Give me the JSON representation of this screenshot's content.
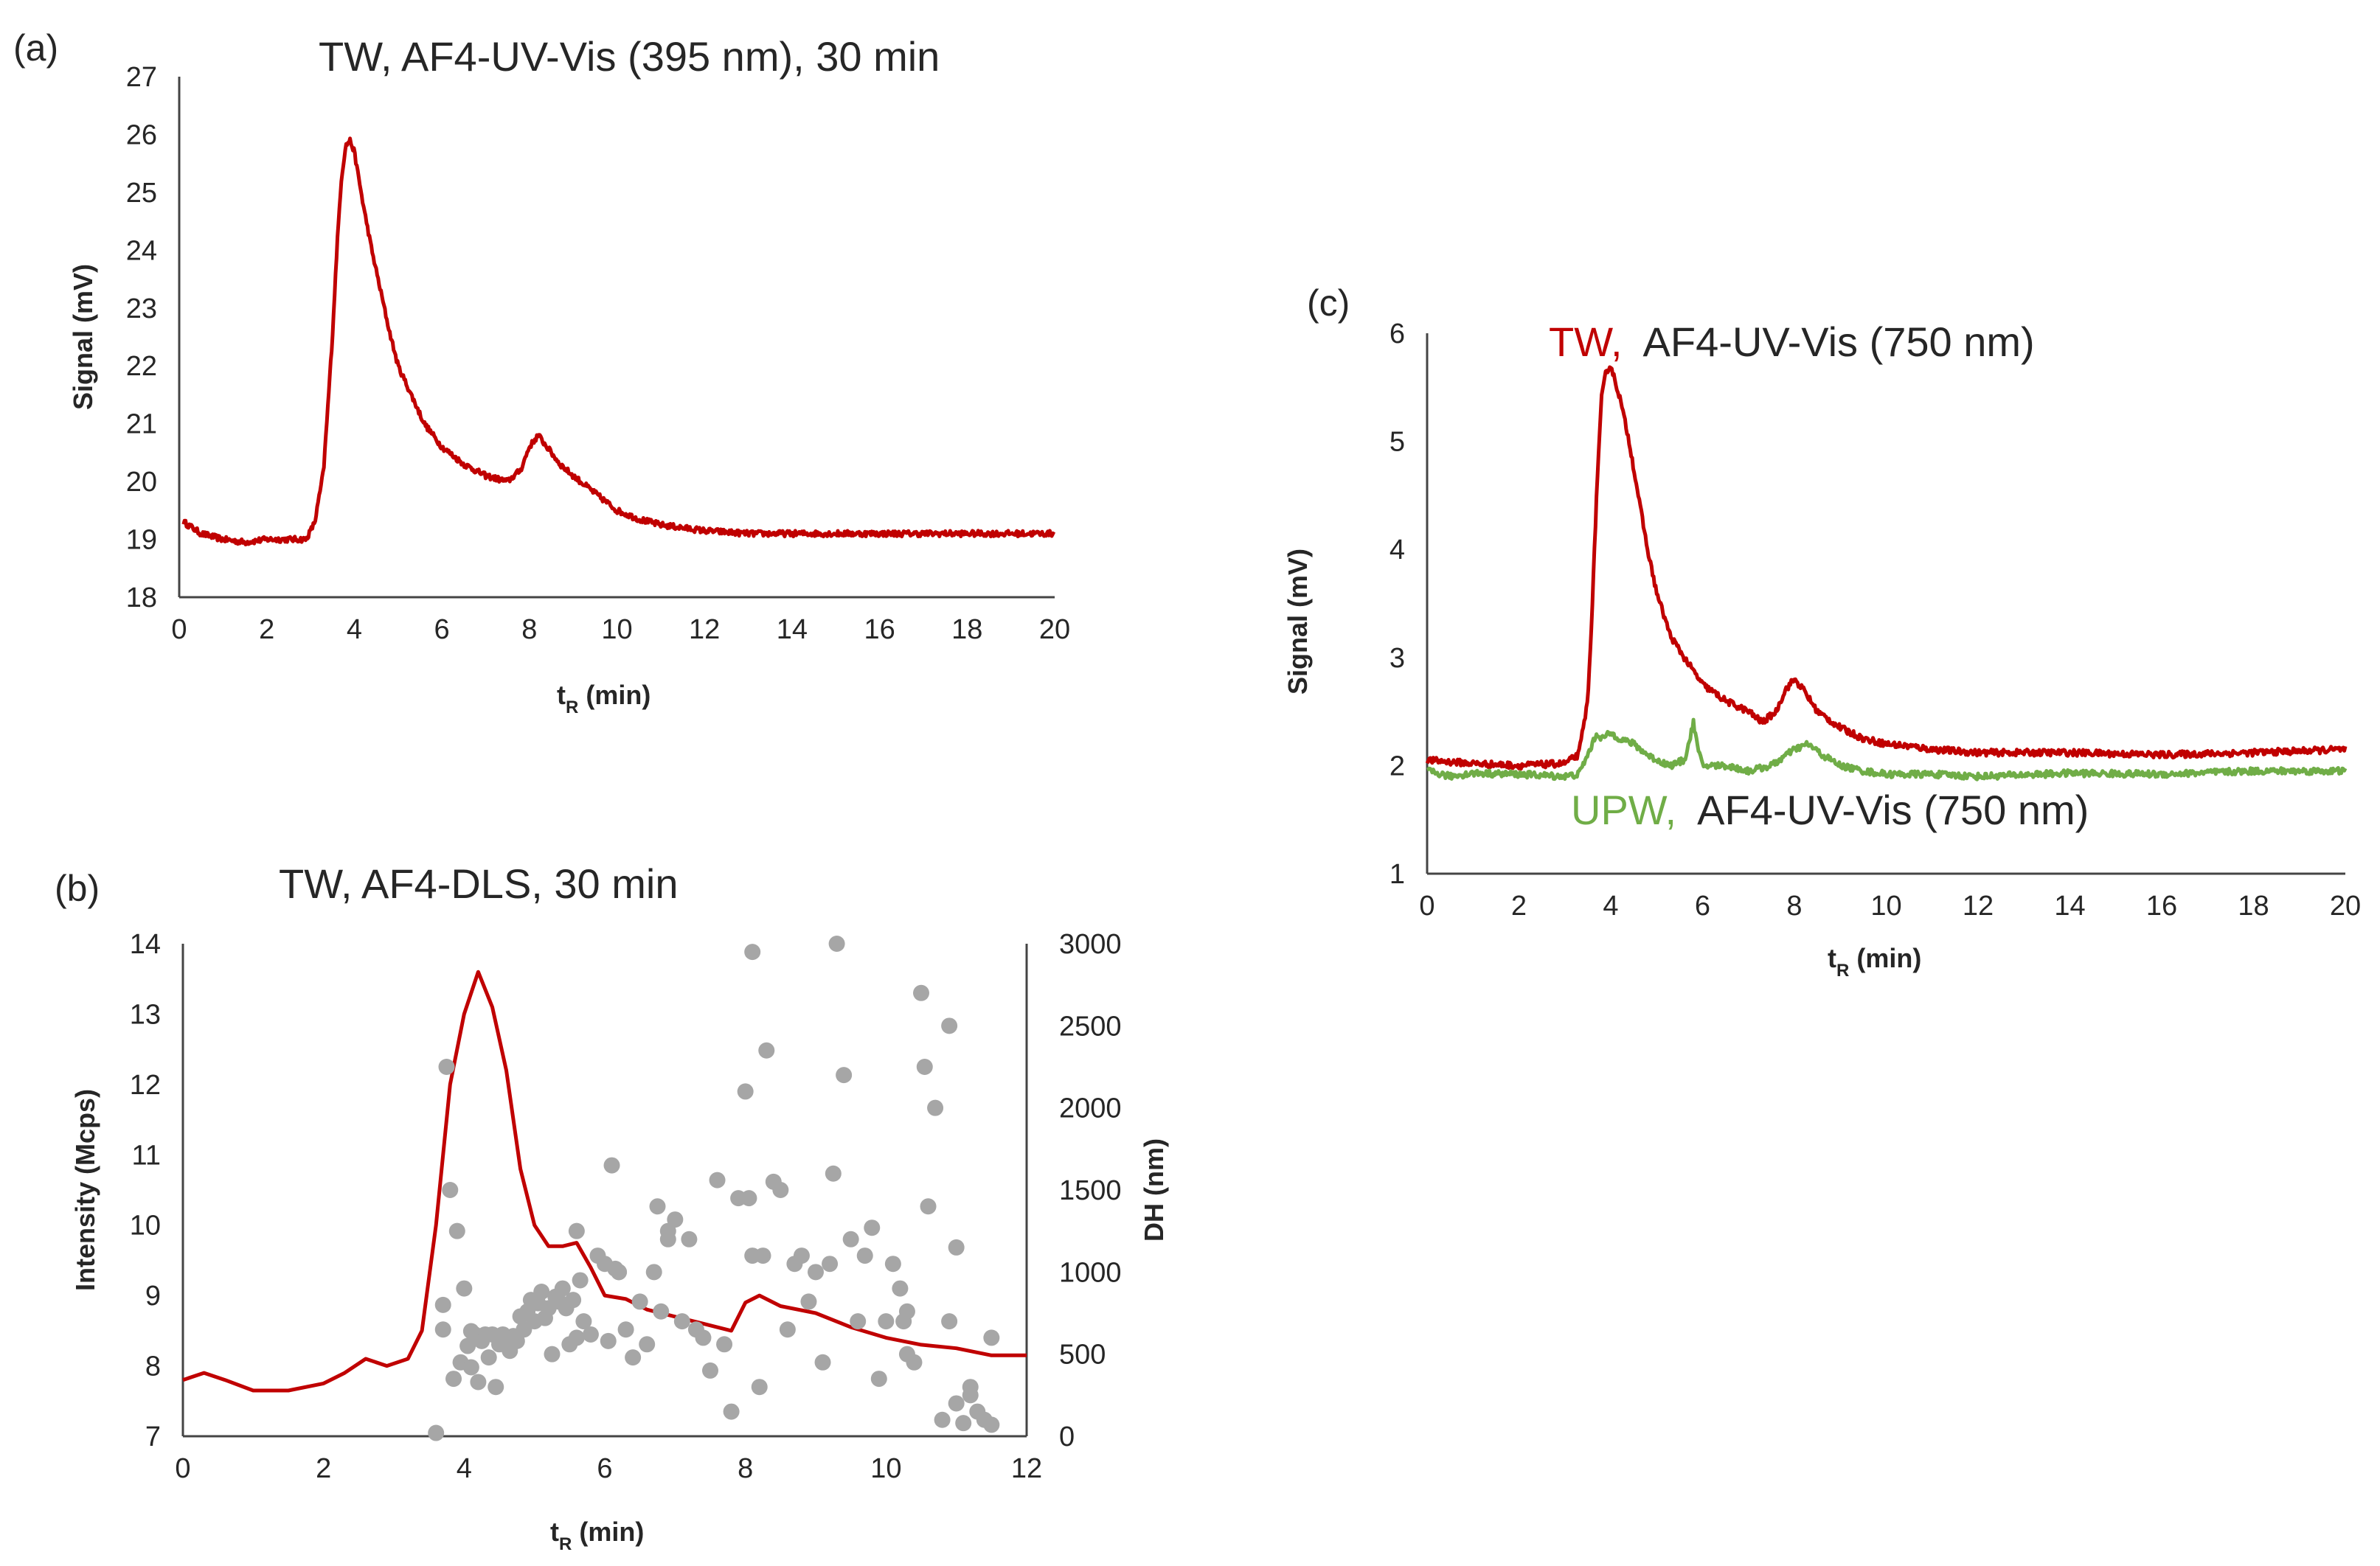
{
  "colors": {
    "tw": "#C00000",
    "upw": "#70AD47",
    "dots": "#A6A6A6",
    "text": "#262626",
    "axis": "#444444"
  },
  "chart_data": [
    {
      "panel": "(a)",
      "type": "line",
      "title": "TW,  AF4-UV-Vis (395 nm), 30 min",
      "xlabel_main": "t",
      "xlabel_sub": "R",
      "xlabel_unit": " (min)",
      "ylabel": "Signal (mV)",
      "xlim": [
        0,
        20
      ],
      "ylim": [
        18,
        27
      ],
      "xticks": [
        0,
        2,
        4,
        6,
        8,
        10,
        12,
        14,
        16,
        18,
        20
      ],
      "yticks": [
        18,
        19,
        20,
        21,
        22,
        23,
        24,
        25,
        26,
        27
      ],
      "series": [
        {
          "name": "TW",
          "color": "#C00000",
          "noise": 0.05,
          "x": [
            0.1,
            0.5,
            1.0,
            1.5,
            2.0,
            2.5,
            2.9,
            3.1,
            3.3,
            3.5,
            3.6,
            3.7,
            3.8,
            3.9,
            4.0,
            4.2,
            4.4,
            4.6,
            4.8,
            5.0,
            5.3,
            5.6,
            6.0,
            6.5,
            7.0,
            7.5,
            7.8,
            8.0,
            8.2,
            8.4,
            8.7,
            9.0,
            9.5,
            10.0,
            10.5,
            11.0,
            12.0,
            13.0,
            14.0,
            16.0,
            18.0,
            20.0
          ],
          "y": [
            19.3,
            19.1,
            19.0,
            18.95,
            19.0,
            19.0,
            19.0,
            19.3,
            20.2,
            22.5,
            24.0,
            25.2,
            25.8,
            25.9,
            25.7,
            24.8,
            24.0,
            23.3,
            22.6,
            22.0,
            21.5,
            21.0,
            20.6,
            20.3,
            20.1,
            20.0,
            20.2,
            20.6,
            20.8,
            20.6,
            20.3,
            20.1,
            19.8,
            19.5,
            19.35,
            19.25,
            19.15,
            19.1,
            19.1,
            19.1,
            19.1,
            19.1
          ]
        }
      ]
    },
    {
      "panel": "(b)",
      "type": "line+scatter",
      "title": "TW,  AF4-DLS, 30 min",
      "xlabel_main": "t",
      "xlabel_sub": "R",
      "xlabel_unit": " (min)",
      "ylabel": "Intensity (Mcps)",
      "y2label": "DH (nm)",
      "xlim": [
        0,
        12
      ],
      "ylim": [
        7,
        14
      ],
      "y2lim": [
        0,
        3000
      ],
      "xticks": [
        0,
        2,
        4,
        6,
        8,
        10,
        12
      ],
      "yticks": [
        7,
        8,
        9,
        10,
        11,
        12,
        13,
        14
      ],
      "y2ticks": [
        0,
        500,
        1000,
        1500,
        2000,
        2500,
        3000
      ],
      "series": [
        {
          "name": "Intensity",
          "axis": "left",
          "color": "#C00000",
          "x": [
            0,
            0.3,
            0.6,
            1.0,
            1.5,
            2.0,
            2.3,
            2.6,
            2.9,
            3.2,
            3.4,
            3.6,
            3.8,
            4.0,
            4.2,
            4.4,
            4.6,
            4.8,
            5.0,
            5.2,
            5.4,
            5.6,
            5.8,
            6.0,
            6.3,
            6.6,
            7.0,
            7.4,
            7.8,
            8.0,
            8.2,
            8.5,
            9.0,
            9.5,
            10.0,
            10.5,
            11.0,
            11.5,
            12.0
          ],
          "y": [
            7.8,
            7.9,
            7.8,
            7.65,
            7.65,
            7.75,
            7.9,
            8.1,
            8.0,
            8.1,
            8.5,
            10.0,
            12.0,
            13.0,
            13.6,
            13.1,
            12.2,
            10.8,
            10.0,
            9.7,
            9.7,
            9.75,
            9.4,
            9.0,
            8.95,
            8.8,
            8.7,
            8.6,
            8.5,
            8.9,
            9.0,
            8.85,
            8.75,
            8.55,
            8.4,
            8.3,
            8.25,
            8.15,
            8.15
          ]
        },
        {
          "name": "DH",
          "axis": "right",
          "type": "scatter",
          "color": "#A6A6A6",
          "x": [
            3.6,
            3.7,
            3.75,
            3.85,
            3.9,
            3.95,
            4.0,
            4.05,
            4.1,
            4.15,
            4.2,
            4.25,
            4.3,
            4.35,
            4.4,
            4.45,
            4.5,
            4.55,
            4.6,
            4.65,
            4.7,
            4.75,
            4.8,
            4.85,
            4.9,
            4.95,
            5.0,
            5.05,
            5.1,
            5.15,
            5.2,
            5.25,
            5.3,
            5.35,
            5.4,
            5.45,
            5.5,
            5.55,
            5.6,
            5.65,
            5.7,
            5.8,
            5.9,
            6.0,
            6.05,
            6.1,
            6.15,
            6.2,
            6.3,
            6.4,
            6.5,
            6.6,
            6.7,
            6.75,
            6.8,
            6.9,
            7.0,
            7.1,
            7.2,
            7.3,
            7.4,
            7.5,
            7.6,
            7.7,
            7.8,
            7.9,
            8.0,
            8.05,
            8.1,
            8.2,
            8.25,
            8.3,
            8.4,
            8.5,
            8.6,
            8.7,
            8.8,
            8.9,
            9.0,
            9.1,
            9.2,
            9.25,
            9.3,
            9.4,
            9.5,
            9.6,
            9.7,
            9.8,
            9.9,
            10.0,
            10.1,
            10.2,
            10.25,
            10.3,
            10.4,
            10.5,
            10.55,
            10.6,
            10.7,
            10.8,
            10.9,
            11.0,
            11.1,
            11.2,
            11.3,
            11.4,
            11.5,
            3.7,
            3.8,
            4.1,
            5.6,
            6.2,
            6.9,
            8.1,
            10.3,
            10.9,
            11.5,
            11.0,
            11.2
          ],
          "y": [
            20,
            650,
            2250,
            350,
            1250,
            450,
            900,
            550,
            420,
            620,
            330,
            580,
            620,
            480,
            620,
            300,
            560,
            620,
            590,
            520,
            610,
            580,
            730,
            650,
            760,
            830,
            700,
            810,
            880,
            720,
            780,
            500,
            850,
            820,
            900,
            780,
            560,
            830,
            1250,
            950,
            700,
            620,
            1100,
            1050,
            580,
            1650,
            1020,
            1000,
            650,
            480,
            820,
            560,
            1000,
            1400,
            760,
            1200,
            1320,
            700,
            1200,
            650,
            600,
            400,
            1560,
            560,
            150,
            1450,
            2100,
            1450,
            2950,
            300,
            1100,
            2350,
            1550,
            1500,
            650,
            1050,
            1100,
            820,
            1000,
            450,
            1050,
            1600,
            3000,
            2200,
            1200,
            700,
            1100,
            1270,
            350,
            700,
            1050,
            900,
            700,
            500,
            450,
            2700,
            2250,
            1400,
            2000,
            100,
            700,
            1150,
            80,
            300,
            150,
            100,
            70,
            800,
            1500,
            640,
            600,
            1000,
            1250,
            1100,
            760,
            2500,
            600,
            200,
            250
          ],
          "note": "values in nm, read from right axis"
        }
      ]
    },
    {
      "panel": "(c)",
      "type": "line",
      "title_tw": "TW,",
      "title_rest": "  AF4-UV-Vis (750 nm)",
      "legend_upw": "UPW,",
      "legend_upw_rest": "  AF4-UV-Vis (750 nm)",
      "xlabel_main": "t",
      "xlabel_sub": "R",
      "xlabel_unit": " (min)",
      "ylabel": "Signal (mV)",
      "xlim": [
        0,
        20
      ],
      "ylim": [
        1,
        6
      ],
      "xticks": [
        0,
        2,
        4,
        6,
        8,
        10,
        12,
        14,
        16,
        18,
        20
      ],
      "yticks": [
        1,
        2,
        3,
        4,
        5,
        6
      ],
      "series": [
        {
          "name": "TW",
          "color": "#C00000",
          "noise": 0.03,
          "x": [
            0,
            1.0,
            2.0,
            3.0,
            3.3,
            3.5,
            3.6,
            3.7,
            3.8,
            3.9,
            4.0,
            4.2,
            4.4,
            4.6,
            4.8,
            5.0,
            5.3,
            5.6,
            6.0,
            6.5,
            7.0,
            7.3,
            7.6,
            7.8,
            8.0,
            8.2,
            8.5,
            9.0,
            9.5,
            10.0,
            10.5,
            11.0,
            12.0,
            14.0,
            16.0,
            18.0,
            20.0
          ],
          "y": [
            2.05,
            2.02,
            2.0,
            2.02,
            2.1,
            2.6,
            3.5,
            4.6,
            5.4,
            5.65,
            5.7,
            5.4,
            5.0,
            4.5,
            4.0,
            3.6,
            3.2,
            3.0,
            2.75,
            2.6,
            2.5,
            2.4,
            2.5,
            2.7,
            2.8,
            2.7,
            2.5,
            2.35,
            2.25,
            2.2,
            2.18,
            2.15,
            2.12,
            2.12,
            2.1,
            2.12,
            2.15
          ]
        },
        {
          "name": "UPW",
          "color": "#70AD47",
          "noise": 0.03,
          "x": [
            0,
            0.5,
            1.0,
            2.0,
            3.0,
            3.3,
            3.5,
            3.7,
            3.8,
            4.0,
            4.2,
            4.5,
            4.8,
            5.0,
            5.3,
            5.6,
            5.7,
            5.8,
            5.9,
            6.0,
            6.5,
            7.0,
            7.5,
            8.0,
            8.3,
            8.6,
            9.0,
            9.5,
            10.0,
            11.0,
            12.0,
            14.0,
            16.0,
            18.0,
            20.0
          ],
          "y": [
            1.95,
            1.9,
            1.93,
            1.92,
            1.9,
            1.92,
            2.1,
            2.3,
            2.25,
            2.3,
            2.25,
            2.2,
            2.1,
            2.05,
            2.0,
            2.05,
            2.2,
            2.4,
            2.15,
            2.0,
            2.0,
            1.95,
            2.0,
            2.15,
            2.2,
            2.1,
            2.0,
            1.95,
            1.92,
            1.92,
            1.9,
            1.93,
            1.92,
            1.95,
            1.95
          ]
        }
      ]
    }
  ]
}
